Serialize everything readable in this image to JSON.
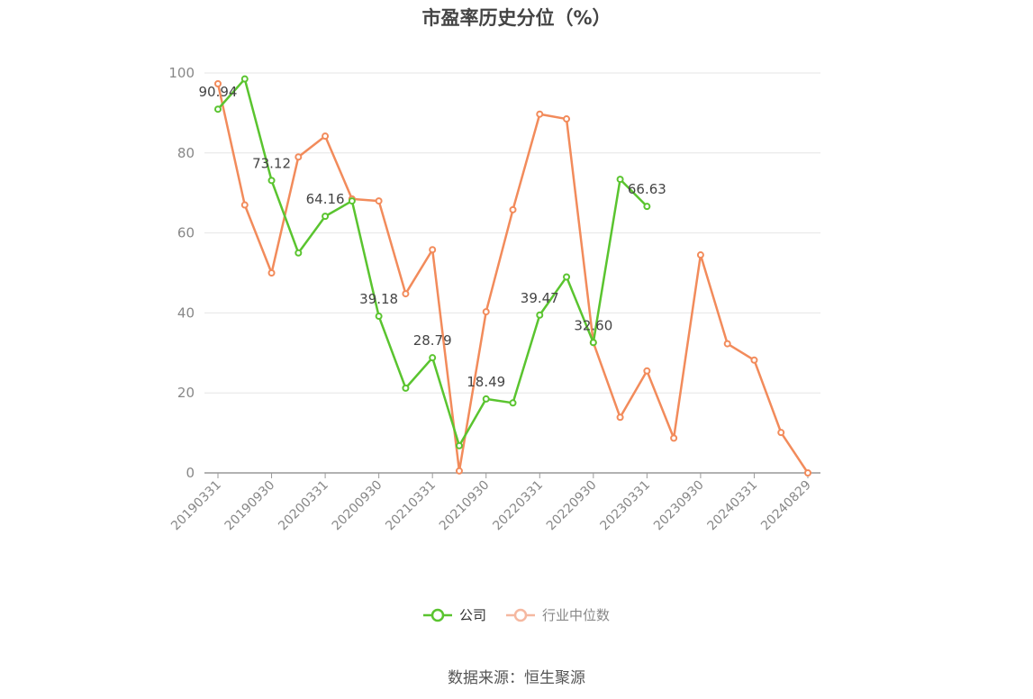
{
  "title": "市盈率历史分位（%）",
  "source": "数据来源：恒生聚源",
  "colors": {
    "company": "#5ac42f",
    "industry": "#f28b5b",
    "grid": "#e6e6e6",
    "axis": "#999999"
  },
  "chart_data": {
    "type": "line",
    "title": "市盈率历史分位（%）",
    "ylim": [
      0,
      100
    ],
    "yticks": [
      0,
      20,
      40,
      60,
      80,
      100
    ],
    "grid": true,
    "legend_position": "bottom",
    "x_tick_labels": [
      "20190331",
      "20190930",
      "20200331",
      "20200930",
      "20210331",
      "20210930",
      "20220331",
      "20220930",
      "20230331",
      "20230930",
      "20240331",
      "20240829"
    ],
    "x": [
      "20190331",
      "20190630",
      "20190930",
      "20191231",
      "20200331",
      "20200630",
      "20200930",
      "20201231",
      "20210331",
      "20210630",
      "20210930",
      "20211231",
      "20220331",
      "20220630",
      "20220930",
      "20221231",
      "20230331",
      "20230630",
      "20230930",
      "20231231",
      "20240331",
      "20240630",
      "20240829"
    ],
    "series": [
      {
        "name": "公司",
        "color": "#5ac42f",
        "values": [
          90.94,
          98.5,
          73.12,
          55.0,
          64.16,
          68.0,
          39.18,
          21.2,
          28.79,
          6.8,
          18.49,
          17.5,
          39.47,
          49.0,
          32.6,
          73.4,
          66.63,
          null,
          null,
          null,
          null,
          null,
          null
        ],
        "labels": [
          "90.94",
          null,
          "73.12",
          null,
          "64.16",
          null,
          "39.18",
          null,
          "28.79",
          null,
          "18.49",
          null,
          "39.47",
          null,
          "32.60",
          null,
          "66.63",
          null,
          null,
          null,
          null,
          null,
          null
        ]
      },
      {
        "name": "行业中位数",
        "color": "#f28b5b",
        "values": [
          97.3,
          67.0,
          50.0,
          79.0,
          84.2,
          68.5,
          68.0,
          44.8,
          55.8,
          0.5,
          40.3,
          65.8,
          89.7,
          88.5,
          32.6,
          13.9,
          25.5,
          8.7,
          54.5,
          32.3,
          28.2,
          10.1,
          0.0
        ]
      }
    ]
  }
}
